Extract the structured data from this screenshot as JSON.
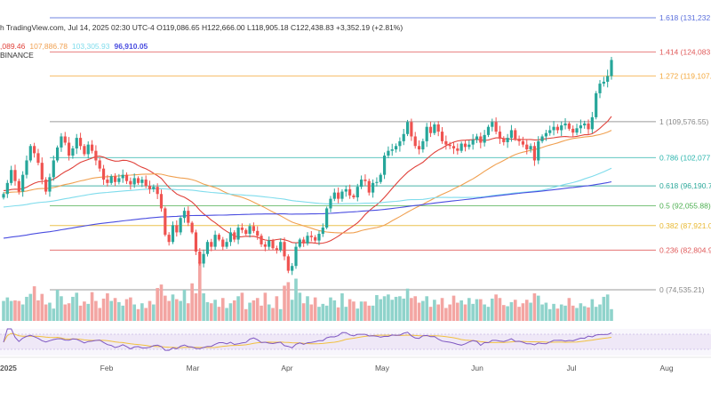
{
  "header": {
    "source": "h TradingView.com, Jul 14, 2025 02:30 UTC-4",
    "ohlc": "O119,086.65 H122,666.00 L118,905.18 C122,438.83 +3,352.19 (+2.81%)",
    "exchange": "BINANCE"
  },
  "ma_values": [
    {
      "text": ",089.46",
      "color": "#e0413a"
    },
    {
      "text": "107,886.78",
      "color": "#f0a050"
    },
    {
      "text": "103,305.93",
      "color": "#7fdcec"
    },
    {
      "text": "96,910.05",
      "color": "#4a4de0"
    }
  ],
  "fib_levels": [
    {
      "label": "1.618 (131,232.",
      "price": 131232,
      "color": "#5a6fdc"
    },
    {
      "label": "1.414 (124,083.",
      "price": 124083,
      "color": "#e05a5a"
    },
    {
      "label": "1.272 (119,107.",
      "price": 119107,
      "color": "#f3a73a"
    },
    {
      "label": "1 (109,576.55)",
      "price": 109576.55,
      "color": "#888888"
    },
    {
      "label": "0.786 (102,077.",
      "price": 102077,
      "color": "#2bb5ad"
    },
    {
      "label": "0.618 (96,190.7",
      "price": 96190.7,
      "color": "#2aa89a"
    },
    {
      "label": "0.5 (92,055.88)",
      "price": 92055.88,
      "color": "#4caf50"
    },
    {
      "label": "0.382 (87,921.0",
      "price": 87921.0,
      "color": "#e8b830"
    },
    {
      "label": "0.236 (82,804.9",
      "price": 82804.9,
      "color": "#e05a5a"
    },
    {
      "label": "0 (74,535.21)",
      "price": 74535.21,
      "color": "#888888"
    }
  ],
  "time_axis": [
    {
      "label": "2025",
      "month_index": 0
    },
    {
      "label": "Feb",
      "month_index": 1
    },
    {
      "label": "Mar",
      "month_index": 2
    },
    {
      "label": "Apr",
      "month_index": 3
    },
    {
      "label": "May",
      "month_index": 4
    },
    {
      "label": "Jun",
      "month_index": 5
    },
    {
      "label": "Jul",
      "month_index": 6
    },
    {
      "label": "Aug",
      "month_index": 7
    }
  ],
  "chart_data": {
    "type": "candlestick",
    "up_color": "#26a69a",
    "down_color": "#ef5350",
    "closes": [
      94500,
      96800,
      99500,
      97200,
      95000,
      98500,
      101500,
      104500,
      103000,
      101000,
      97500,
      95000,
      98000,
      101500,
      104200,
      106500,
      105200,
      102500,
      104000,
      106200,
      104500,
      102800,
      104800,
      103500,
      101500,
      99800,
      97500,
      96800,
      98200,
      97000,
      97800,
      98500,
      97200,
      96500,
      97800,
      96800,
      97500,
      96200,
      95500,
      96000,
      94500,
      91500,
      86000,
      84500,
      88000,
      86500,
      89500,
      91000,
      88500,
      86500,
      82500,
      80000,
      82000,
      84500,
      83500,
      86000,
      85000,
      83500,
      84500,
      86500,
      85000,
      87500,
      87000,
      86200,
      87800,
      86800,
      85800,
      84000,
      83500,
      84800,
      83200,
      82800,
      84500,
      81500,
      78500,
      79500,
      83500,
      85000,
      84200,
      85800,
      85500,
      84800,
      86200,
      87500,
      91500,
      93500,
      94800,
      93500,
      95000,
      95500,
      94200,
      93800,
      96000,
      97500,
      97200,
      94800,
      96800,
      97000,
      98500,
      102500,
      103500,
      103800,
      104500,
      105500,
      107000,
      109500,
      106500,
      104500,
      103800,
      105500,
      108500,
      107200,
      109000,
      107500,
      105500,
      104800,
      104500,
      104000,
      103500,
      105000,
      104300,
      104800,
      105800,
      106500,
      105200,
      106800,
      108500,
      109500,
      107500,
      106000,
      105300,
      106200,
      107800,
      106000,
      105500,
      104800,
      103800,
      104500,
      101500,
      105500,
      106500,
      107200,
      107800,
      108500,
      107800,
      108800,
      109200,
      108100,
      107300,
      108200,
      108800,
      109200,
      108000,
      110500,
      115500,
      117500,
      117900,
      119086.65,
      122438.83
    ],
    "volume_relative": [
      0.34,
      0.4,
      0.34,
      0.35,
      0.34,
      0.28,
      0.41,
      0.46,
      0.59,
      0.35,
      0.46,
      0.28,
      0.31,
      0.21,
      0.53,
      0.42,
      0.28,
      0.3,
      0.41,
      0.48,
      0.26,
      0.33,
      0.29,
      0.49,
      0.34,
      0.22,
      0.38,
      0.47,
      0.34,
      0.39,
      0.32,
      0.26,
      0.37,
      0.4,
      0.28,
      0.2,
      0.3,
      0.22,
      0.34,
      0.28,
      0.56,
      0.62,
      0.43,
      0.34,
      0.45,
      0.37,
      0.34,
      0.53,
      0.3,
      0.64,
      0.47,
      1.0,
      0.47,
      0.32,
      0.3,
      0.36,
      0.24,
      0.39,
      0.22,
      0.3,
      0.35,
      0.42,
      0.48,
      0.2,
      0.31,
      0.35,
      0.39,
      0.26,
      0.48,
      0.28,
      0.22,
      0.42,
      0.2,
      0.6,
      0.66,
      0.36,
      0.72,
      0.48,
      0.3,
      0.42,
      0.28,
      0.4,
      0.24,
      0.29,
      0.26,
      0.4,
      0.35,
      0.23,
      0.47,
      0.24,
      0.37,
      0.33,
      0.21,
      0.33,
      0.33,
      0.26,
      0.26,
      0.44,
      0.37,
      0.42,
      0.45,
      0.36,
      0.41,
      0.42,
      0.38,
      0.55,
      0.39,
      0.42,
      0.31,
      0.34,
      0.42,
      0.24,
      0.36,
      0.28,
      0.39,
      0.22,
      0.28,
      0.43,
      0.31,
      0.35,
      0.28,
      0.39,
      0.29,
      0.37,
      0.37,
      0.28,
      0.24,
      0.38,
      0.45,
      0.39,
      0.27,
      0.25,
      0.32,
      0.36,
      0.24,
      0.3,
      0.36,
      0.31,
      0.47,
      0.43,
      0.28,
      0.31,
      0.2,
      0.29,
      0.21,
      0.28,
      0.26,
      0.39,
      0.26,
      0.22,
      0.3,
      0.25,
      0.23,
      0.37,
      0.24,
      0.28,
      0.41,
      0.45,
      0.2
    ],
    "moving_averages": [
      {
        "period": 20,
        "color": "#e0413a"
      },
      {
        "period": 50,
        "color": "#f0a050"
      },
      {
        "period": 100,
        "color": "#7fdcec"
      },
      {
        "period": 200,
        "color": "#4a4de0"
      }
    ],
    "rsi_oscillator": {
      "line_color": "#7e57c2",
      "ma_color": "#f0c040",
      "band_fill": "#ede7f6"
    }
  }
}
